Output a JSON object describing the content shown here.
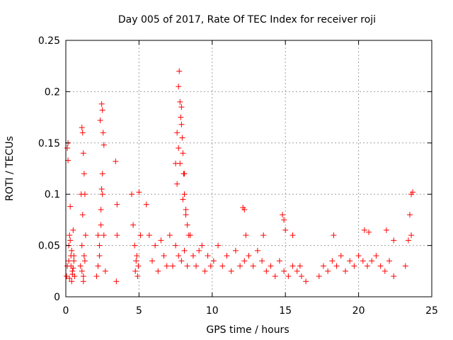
{
  "chart_data": {
    "type": "scatter",
    "title": "Day 005 of 2017, Rate Of TEC Index for receiver roji",
    "xlabel": "GPS time / hours",
    "ylabel": "ROTI / TECUs",
    "xlim": [
      0,
      25
    ],
    "ylim": [
      0,
      0.25
    ],
    "xticks": [
      0,
      5,
      10,
      15,
      20,
      25
    ],
    "yticks": [
      0,
      0.05,
      0.1,
      0.15,
      0.2,
      0.25
    ],
    "xtick_labels": [
      "0",
      "5",
      "10",
      "15",
      "20",
      "25"
    ],
    "ytick_labels": [
      "0",
      "0.05",
      "0.1",
      "0.15",
      "0.2",
      "0.25"
    ],
    "grid": true,
    "marker": "+",
    "color": "#ff0000",
    "series": [
      {
        "x": [
          0.05,
          0.1,
          0.15,
          0.2,
          0.25,
          0.3,
          0.35,
          0.4,
          0.45,
          0.5,
          0.55,
          0.6,
          0.1,
          0.2,
          0.15,
          0.25,
          0.35,
          0.45,
          0.55,
          0.3,
          0.4,
          0.5,
          1.0,
          1.05,
          1.1,
          1.15,
          1.2,
          1.25,
          1.3,
          1.35,
          1.1,
          1.2,
          1.15,
          1.25,
          1.3,
          1.2,
          1.1,
          2.1,
          2.2,
          2.3,
          2.4,
          2.5,
          2.6,
          2.35,
          2.45,
          2.5,
          2.55,
          2.45,
          2.5,
          2.4,
          2.3,
          2.2,
          2.6,
          2.7,
          3.4,
          3.5,
          3.45,
          3.5,
          4.5,
          4.6,
          4.7,
          4.8,
          4.9,
          5.0,
          5.1,
          4.85,
          4.75,
          4.95,
          5.5,
          5.7,
          5.9,
          6.1,
          6.3,
          6.5,
          6.7,
          6.9,
          7.1,
          7.3,
          7.5,
          7.7,
          7.9,
          8.1,
          8.3,
          8.5,
          8.7,
          8.9,
          9.1,
          9.3,
          9.5,
          9.7,
          9.9,
          7.5,
          7.6,
          7.7,
          7.75,
          7.8,
          7.85,
          7.9,
          7.95,
          8.0,
          8.05,
          8.1,
          8.2,
          8.3,
          8.4,
          7.6,
          7.8,
          8.0,
          8.2,
          7.7,
          7.9,
          8.1,
          10.1,
          10.4,
          10.7,
          11.0,
          11.3,
          11.6,
          11.9,
          12.2,
          12.5,
          12.8,
          13.1,
          13.4,
          13.7,
          14.0,
          14.3,
          14.6,
          14.9,
          15.2,
          15.5,
          15.8,
          16.1,
          16.4,
          12.1,
          12.2,
          12.3,
          13.5,
          14.8,
          14.9,
          15.0,
          15.5,
          16.0,
          17.3,
          17.6,
          17.9,
          18.2,
          18.5,
          18.8,
          19.1,
          19.4,
          19.7,
          20.0,
          20.3,
          20.6,
          20.9,
          21.2,
          21.5,
          21.8,
          22.1,
          22.4,
          18.3,
          20.4,
          20.7,
          21.9,
          22.4,
          23.2,
          23.4,
          23.6,
          23.7,
          23.5,
          23.6
        ],
        "y": [
          0.02,
          0.145,
          0.15,
          0.035,
          0.06,
          0.088,
          0.03,
          0.045,
          0.025,
          0.065,
          0.04,
          0.02,
          0.03,
          0.05,
          0.133,
          0.018,
          0.04,
          0.022,
          0.035,
          0.055,
          0.015,
          0.028,
          0.03,
          0.1,
          0.165,
          0.16,
          0.14,
          0.12,
          0.1,
          0.06,
          0.05,
          0.02,
          0.08,
          0.04,
          0.035,
          0.015,
          0.025,
          0.02,
          0.06,
          0.04,
          0.085,
          0.12,
          0.148,
          0.172,
          0.188,
          0.182,
          0.16,
          0.105,
          0.1,
          0.07,
          0.05,
          0.03,
          0.06,
          0.025,
          0.132,
          0.09,
          0.015,
          0.06,
          0.1,
          0.07,
          0.05,
          0.035,
          0.02,
          0.102,
          0.06,
          0.04,
          0.025,
          0.03,
          0.09,
          0.06,
          0.035,
          0.05,
          0.025,
          0.055,
          0.04,
          0.03,
          0.06,
          0.03,
          0.05,
          0.04,
          0.035,
          0.045,
          0.03,
          0.06,
          0.04,
          0.03,
          0.045,
          0.05,
          0.025,
          0.04,
          0.03,
          0.13,
          0.16,
          0.205,
          0.22,
          0.19,
          0.175,
          0.185,
          0.155,
          0.14,
          0.12,
          0.1,
          0.08,
          0.07,
          0.06,
          0.11,
          0.13,
          0.095,
          0.085,
          0.145,
          0.168,
          0.12,
          0.035,
          0.05,
          0.03,
          0.04,
          0.025,
          0.045,
          0.03,
          0.035,
          0.04,
          0.03,
          0.045,
          0.035,
          0.025,
          0.03,
          0.02,
          0.035,
          0.025,
          0.02,
          0.03,
          0.025,
          0.02,
          0.015,
          0.087,
          0.085,
          0.06,
          0.06,
          0.08,
          0.075,
          0.065,
          0.06,
          0.03,
          0.02,
          0.03,
          0.025,
          0.035,
          0.03,
          0.04,
          0.025,
          0.035,
          0.03,
          0.04,
          0.035,
          0.03,
          0.035,
          0.04,
          0.03,
          0.025,
          0.035,
          0.02,
          0.06,
          0.065,
          0.063,
          0.065,
          0.055,
          0.03,
          0.055,
          0.1,
          0.102,
          0.08,
          0.06
        ]
      }
    ]
  }
}
